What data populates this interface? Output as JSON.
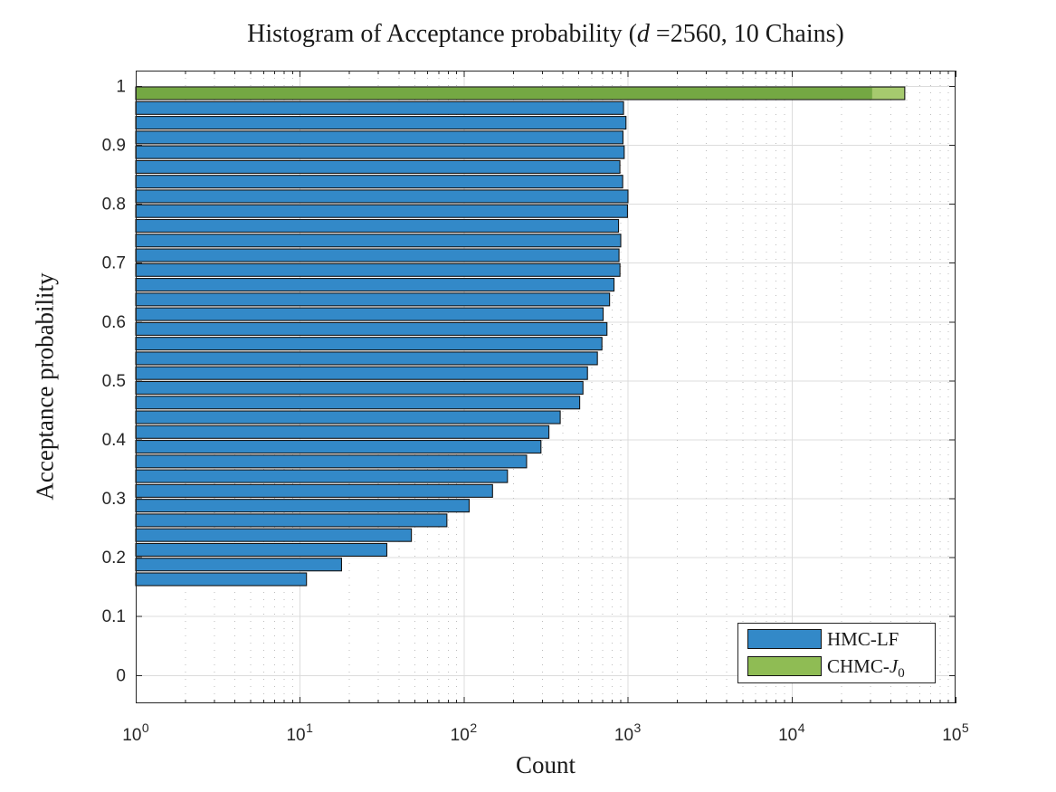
{
  "figure": {
    "title": {
      "prefix": "Histogram of Acceptance probability (",
      "var": "d",
      "suffix": " =2560, 10 Chains)"
    },
    "xlabel": "Count",
    "ylabel": "Acceptance probability",
    "legend": {
      "entries": [
        {
          "label": "HMC-LF",
          "color": "#3389c8"
        },
        {
          "label_prefix": "CHMC-",
          "label_var": "J",
          "label_sub": "0",
          "color": "#8fbc54"
        }
      ]
    }
  },
  "chart_data": {
    "type": "bar",
    "orientation": "horizontal",
    "title": "Histogram of Acceptance probability (d =2560, 10 Chains)",
    "xlabel": "Count",
    "ylabel": "Acceptance probability",
    "x_scale": "log10",
    "xlim": [
      1,
      100000
    ],
    "ylim": [
      -0.048,
      1.026
    ],
    "bin_width": 0.025,
    "x_tick_base": "10",
    "x_tick_exponents": [
      "0",
      "1",
      "2",
      "3",
      "4",
      "5"
    ],
    "y_ticks": [
      0,
      0.1,
      0.2,
      0.3,
      0.4,
      0.5,
      0.6,
      0.7,
      0.8,
      0.9,
      1
    ],
    "y_tick_labels": [
      "0",
      "0.1",
      "0.2",
      "0.3",
      "0.4",
      "0.5",
      "0.6",
      "0.7",
      "0.8",
      "0.9",
      "1"
    ],
    "grid": {
      "x_major": true,
      "x_minor": true,
      "y_major": true,
      "y_minor": false,
      "major_color": "#dcdcdc",
      "minor_color": "#bdbdbd"
    },
    "axis_color": "#262626",
    "legend_position": "southeast",
    "series": [
      {
        "name": "HMC-LF",
        "fill": "#3389c8",
        "edge": "#141414",
        "bin_centers": [
          0.9625,
          0.9375,
          0.9125,
          0.8875,
          0.8625,
          0.8375,
          0.8125,
          0.7875,
          0.7625,
          0.7375,
          0.7125,
          0.6875,
          0.6625,
          0.6375,
          0.6125,
          0.5875,
          0.5625,
          0.5375,
          0.5125,
          0.4875,
          0.4625,
          0.4375,
          0.4125,
          0.3875,
          0.3625,
          0.3375,
          0.3125,
          0.2875,
          0.2625,
          0.2375,
          0.2125,
          0.1875,
          0.1625
        ],
        "counts": [
          944,
          977,
          937,
          953,
          897,
          933,
          1005,
          998,
          880,
          908,
          886,
          898,
          826,
          776,
          709,
          748,
          697,
          654,
          569,
          534,
          510,
          388,
          331,
          296,
          242,
          185,
          150,
          108,
          79,
          48,
          34,
          18,
          11
        ]
      },
      {
        "name": "CHMC-J0",
        "fill_light": "#a6ca6e",
        "fill_dark": "#74a843",
        "edge": "#141414",
        "bin_centers": [
          0.9875
        ],
        "counts": [
          49000
        ],
        "overlap_counts": [
          31000
        ]
      }
    ]
  }
}
